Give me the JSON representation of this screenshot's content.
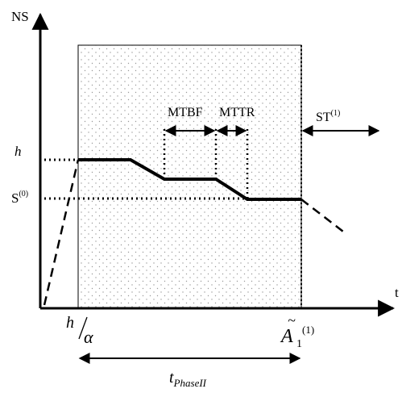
{
  "axes": {
    "y_label": "NS",
    "x_label": "t"
  },
  "y_marks": {
    "h": "h",
    "s0_base": "S",
    "s0_sup": "(0)"
  },
  "intervals": {
    "mtbf": "MTBF",
    "mttr": "MTTR",
    "st_base": "ST",
    "st_sup": "(1)"
  },
  "x_marks": {
    "h_over_alpha_num": "h",
    "h_over_alpha_den": "α",
    "a1_base": "A",
    "a1_accent": "~",
    "a1_sub": "1",
    "a1_sup": "(1)"
  },
  "phase": {
    "t_base": "t",
    "t_sub": "PhaseII"
  },
  "colors": {
    "line": "#000000",
    "dot": "#9a9a9a",
    "background": "#ffffff"
  }
}
